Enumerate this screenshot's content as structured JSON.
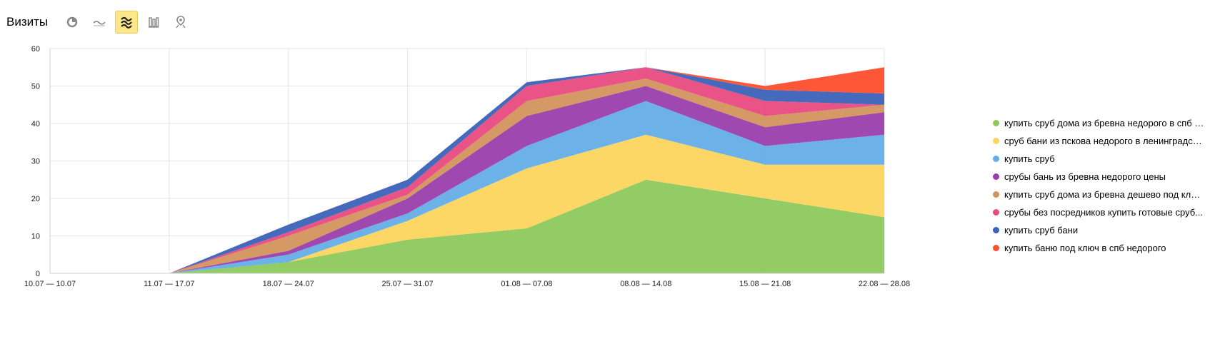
{
  "header": {
    "title": "Визиты",
    "tools": [
      {
        "name": "pie-chart-icon",
        "active": false
      },
      {
        "name": "line-chart-icon",
        "active": false
      },
      {
        "name": "stacked-area-icon",
        "active": true
      },
      {
        "name": "bar-chart-icon",
        "active": false
      },
      {
        "name": "map-icon",
        "active": false
      }
    ]
  },
  "chart_data": {
    "type": "area",
    "stacked": true,
    "title": "",
    "xlabel": "",
    "ylabel": "",
    "ylim": [
      0,
      60
    ],
    "yticks": [
      0,
      10,
      20,
      30,
      40,
      50,
      60
    ],
    "grid": true,
    "legend_position": "right",
    "categories": [
      "10.07 — 10.07",
      "11.07 — 17.07",
      "18.07 — 24.07",
      "25.07 — 31.07",
      "01.08 — 07.08",
      "08.08 — 14.08",
      "15.08 — 21.08",
      "22.08 — 28.08"
    ],
    "series": [
      {
        "name": "купить сруб дома из бревна недорого в спб о...",
        "color": "#8dc85c",
        "values": [
          0,
          0,
          3,
          9,
          12,
          25,
          20,
          15
        ]
      },
      {
        "name": "сруб бани из пскова недорого в ленинградск...",
        "color": "#fdd55e",
        "values": [
          0,
          0,
          0,
          5,
          16,
          12,
          9,
          14
        ]
      },
      {
        "name": "купить сруб",
        "color": "#65ade8",
        "values": [
          0,
          0,
          2,
          2,
          6,
          9,
          5,
          8
        ]
      },
      {
        "name": "срубы бань из бревна недорого цены",
        "color": "#9a3eac",
        "values": [
          0,
          0,
          1,
          4,
          8,
          4,
          5,
          6
        ]
      },
      {
        "name": "купить сруб дома из бревна дешево под клю...",
        "color": "#d2935c",
        "values": [
          0,
          0,
          4,
          1,
          4,
          2,
          3,
          2
        ]
      },
      {
        "name": "срубы без посредников купить готовые сруб...",
        "color": "#e84a7f",
        "values": [
          0,
          0,
          1,
          2,
          4,
          3,
          4,
          0
        ]
      },
      {
        "name": "купить сруб бани",
        "color": "#3b62b8",
        "values": [
          0,
          0,
          2,
          2,
          1,
          0,
          3,
          3
        ]
      },
      {
        "name": "купить баню под ключ в спб недорого",
        "color": "#fd4e2d",
        "values": [
          0,
          0,
          0,
          0,
          0,
          0,
          1,
          7
        ]
      }
    ]
  }
}
